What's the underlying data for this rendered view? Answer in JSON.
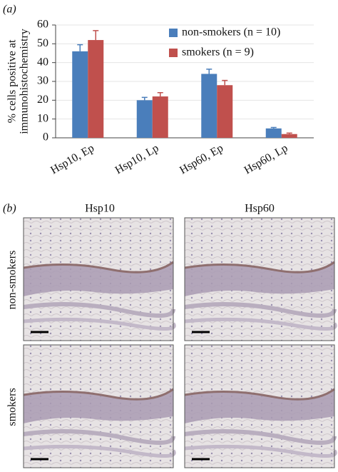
{
  "panel_a_label": "(a)",
  "chart_data": {
    "type": "bar",
    "ylabel": [
      "% cells positive at",
      "immunohistochemistry"
    ],
    "categories": [
      "Hsp10, Ep",
      "Hsp10, Lp",
      "Hsp60, Ep",
      "Hsp60, Lp"
    ],
    "series": [
      {
        "name": "non-smokers (n = 10)",
        "color": "#4a7ebb",
        "values": [
          46,
          20,
          34,
          5
        ],
        "errors": [
          3.5,
          1.5,
          2.5,
          0.5
        ]
      },
      {
        "name": "smokers (n = 9)",
        "color": "#c0504d",
        "values": [
          52,
          22,
          28,
          2
        ],
        "errors": [
          5,
          2,
          2.5,
          0.5
        ]
      }
    ],
    "ylim": [
      0,
      60
    ],
    "yticks": [
      0,
      10,
      20,
      30,
      40,
      50,
      60
    ],
    "grid": true,
    "legend": "top-right"
  },
  "panel_b": {
    "label": "(b)",
    "columns": [
      "Hsp10",
      "Hsp60"
    ],
    "rows": [
      "non-smokers",
      "smokers"
    ]
  }
}
